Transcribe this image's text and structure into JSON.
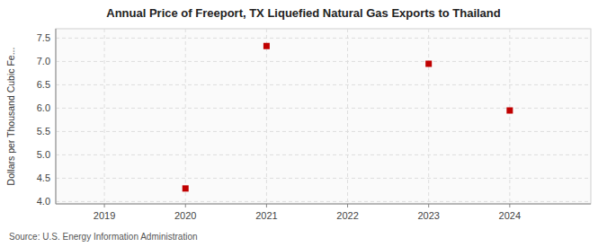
{
  "chart_data": {
    "type": "scatter",
    "title": "Annual Price of Freeport, TX Liquefied Natural Gas Exports to Thailand",
    "ylabel": "Dollars per Thousand Cubic Fe...",
    "annotations": [
      "Source: U.S. Energy Information Administration"
    ],
    "x": [
      2020,
      2021,
      2023,
      2024
    ],
    "values": [
      4.28,
      7.33,
      6.95,
      5.95
    ],
    "xlim": [
      2018.4,
      2025.0
    ],
    "ylim": [
      3.95,
      7.7
    ],
    "xticks": [
      2019,
      2020,
      2021,
      2022,
      2023,
      2024
    ],
    "yticks": [
      {
        "value": 4.0,
        "label": "4.0"
      },
      4.5,
      {
        "value": 5.0,
        "label": "5.0"
      },
      5.5,
      {
        "value": 6.0,
        "label": "6.0"
      },
      6.5,
      {
        "value": 7.0,
        "label": "7.0"
      },
      7.5
    ],
    "color": "#c00000",
    "marker": "square",
    "grid": true
  }
}
